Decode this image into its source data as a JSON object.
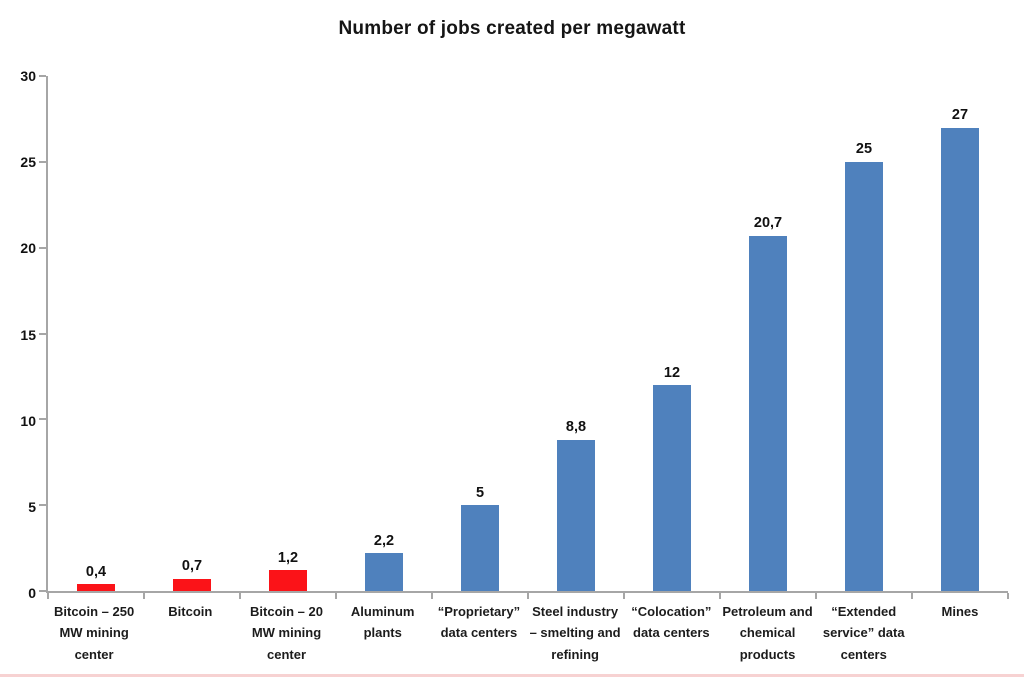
{
  "title": "Number of jobs created per megawatt",
  "colors": {
    "bitcoin_bar": "#fb1318",
    "industry_bar": "#4f81bd",
    "axis": "#a6a6a6",
    "label_text": "#1c1c1c",
    "value_text": "#111111",
    "bottom_strip": "#f6caca"
  },
  "chart_data": {
    "type": "bar",
    "title": "Number of jobs created per megawatt",
    "xlabel": "",
    "ylabel": "",
    "ylim": [
      0,
      30
    ],
    "yticks": [
      0,
      5,
      10,
      15,
      20,
      25,
      30
    ],
    "grid": false,
    "legend": "none",
    "categories": [
      "Bitcoin – 250 MW mining center",
      "Bitcoin",
      "Bitcoin – 20 MW mining center",
      "Aluminum plants",
      "“Proprietary” data centers",
      "Steel industry – smelting and refining",
      "“Colocation” data centers",
      "Petroleum and chemical products",
      "“Extended service” data centers",
      "Mines"
    ],
    "category_display_lines": [
      [
        "Bitcoin – 250",
        "MW mining",
        "center"
      ],
      [
        "Bitcoin"
      ],
      [
        "Bitcoin – 20",
        "MW mining",
        "center"
      ],
      [
        "Aluminum",
        "plants"
      ],
      [
        "“Proprietary”",
        "data centers"
      ],
      [
        "Steel industry",
        "– smelting and",
        "refining"
      ],
      [
        "“Colocation”",
        "data centers"
      ],
      [
        "Petroleum and",
        "chemical",
        "products"
      ],
      [
        "“Extended",
        "service” data",
        "centers"
      ],
      [
        "Mines"
      ]
    ],
    "values": [
      0.4,
      0.7,
      1.2,
      2.2,
      5,
      8.8,
      12,
      20.7,
      25,
      27
    ],
    "value_labels": [
      "0,4",
      "0,7",
      "1,2",
      "2,2",
      "5",
      "8,8",
      "12",
      "20,7",
      "25",
      "27"
    ],
    "bar_color_keys": [
      "bitcoin_bar",
      "bitcoin_bar",
      "bitcoin_bar",
      "industry_bar",
      "industry_bar",
      "industry_bar",
      "industry_bar",
      "industry_bar",
      "industry_bar",
      "industry_bar"
    ]
  }
}
